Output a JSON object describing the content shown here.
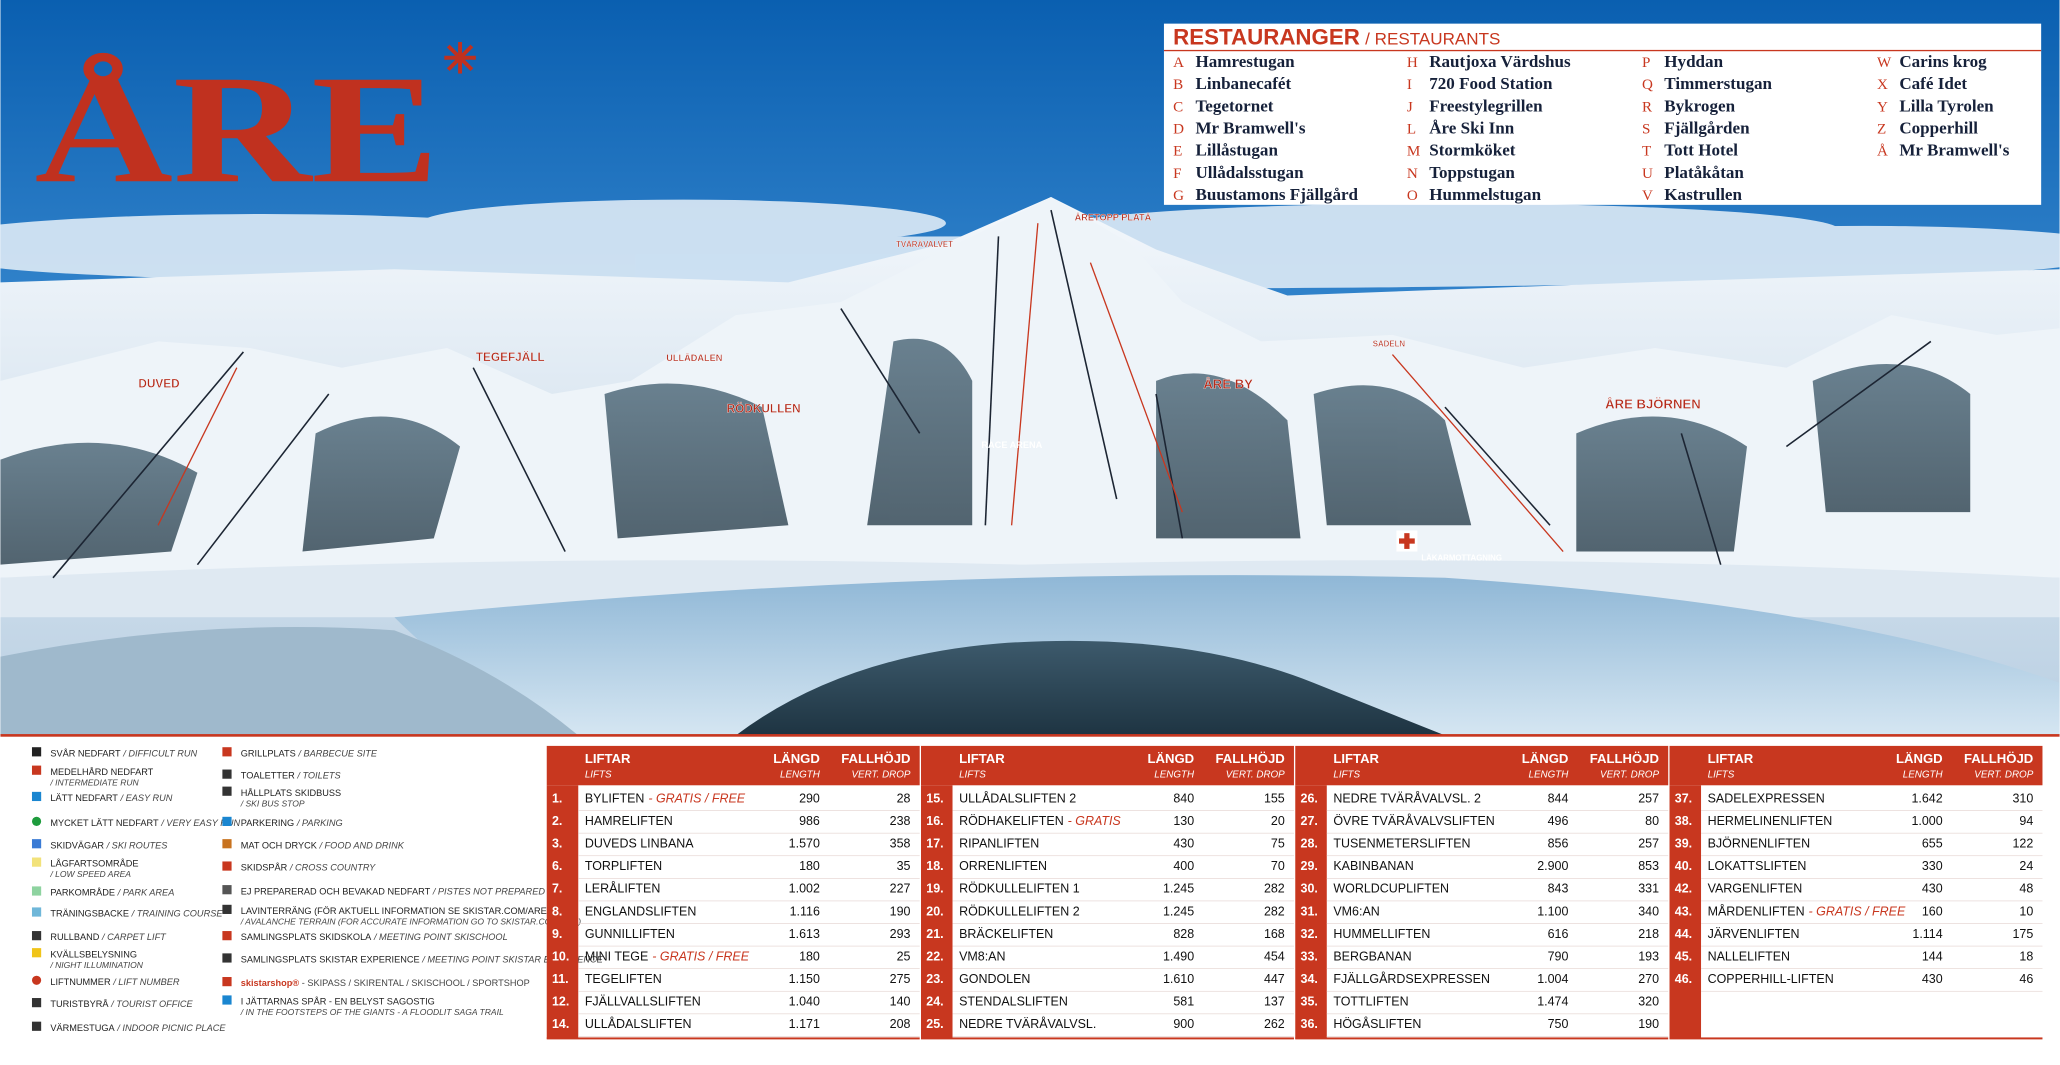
{
  "logo": "ÅRE",
  "restaurants": {
    "title": "RESTAURANGER",
    "subtitle": "/ RESTAURANTS",
    "items": [
      {
        "letter": "A",
        "name": "Hamrestugan"
      },
      {
        "letter": "B",
        "name": "Linbanecafét"
      },
      {
        "letter": "C",
        "name": "Tegetornet"
      },
      {
        "letter": "D",
        "name": "Mr Bramwell's"
      },
      {
        "letter": "E",
        "name": "Lillåstugan"
      },
      {
        "letter": "F",
        "name": "Ullådalsstugan"
      },
      {
        "letter": "G",
        "name": "Buustamons Fjällgård"
      },
      {
        "letter": "H",
        "name": "Rautjoxa Värdshus"
      },
      {
        "letter": "I",
        "name": "720 Food Station"
      },
      {
        "letter": "J",
        "name": "Freestylegrillen"
      },
      {
        "letter": "L",
        "name": "Åre Ski Inn"
      },
      {
        "letter": "M",
        "name": "Stormköket"
      },
      {
        "letter": "N",
        "name": "Toppstugan"
      },
      {
        "letter": "O",
        "name": "Hummelstugan"
      },
      {
        "letter": "P",
        "name": "Hyddan"
      },
      {
        "letter": "Q",
        "name": "Timmerstugan"
      },
      {
        "letter": "R",
        "name": "Bykrogen"
      },
      {
        "letter": "S",
        "name": "Fjällgården"
      },
      {
        "letter": "T",
        "name": "Tott Hotel"
      },
      {
        "letter": "U",
        "name": "Platåkåtan"
      },
      {
        "letter": "V",
        "name": "Kastrullen"
      },
      {
        "letter": "W",
        "name": "Carins krog"
      },
      {
        "letter": "X",
        "name": "Café Idet"
      },
      {
        "letter": "Y",
        "name": "Lilla Tyrolen"
      },
      {
        "letter": "Z",
        "name": "Copperhill"
      },
      {
        "letter": "Å",
        "name": "Mr Bramwell's"
      }
    ]
  },
  "map_labels": [
    "DUVED",
    "TEGEFJÄLL",
    "ULLÅDALEN",
    "RÖDKULLEN",
    "TVÄRÅVALVET",
    "ÅRETOPP PLATÅ",
    "RACE ARENA",
    "ÅRE BY",
    "SADELN",
    "ÅRE BJÖRNEN",
    "LÄKARMOTTAGNING"
  ],
  "legend": [
    {
      "sv": "SVÅR NEDFART",
      "en": "/ DIFFICULT RUN"
    },
    {
      "sv": "MEDELHÅRD NEDFART",
      "en": "/ INTERMEDIATE RUN"
    },
    {
      "sv": "LÄTT NEDFART",
      "en": "/ EASY RUN"
    },
    {
      "sv": "MYCKET LÄTT NEDFART",
      "en": "/ VERY EASY RUN"
    },
    {
      "sv": "SKIDVÄGAR",
      "en": "/ SKI ROUTES"
    },
    {
      "sv": "LÅGFARTSOMRÅDE",
      "en": "/ LOW SPEED AREA"
    },
    {
      "sv": "PARKOMRÅDE",
      "en": "/ PARK AREA"
    },
    {
      "sv": "TRÄNINGSBACKE",
      "en": "/ TRAINING COURSE"
    },
    {
      "sv": "RULLBAND",
      "en": "/ CARPET LIFT"
    },
    {
      "sv": "KVÄLLSBELYSNING",
      "en": "/ NIGHT ILLUMINATION"
    },
    {
      "sv": "LIFTNUMMER",
      "en": "/ LIFT NUMBER"
    },
    {
      "sv": "TURISTBYRÅ",
      "en": "/ TOURIST OFFICE"
    },
    {
      "sv": "VÄRMESTUGA",
      "en": "/ INDOOR PICNIC PLACE"
    },
    {
      "sv": "GRILLPLATS",
      "en": "/ BARBECUE SITE"
    },
    {
      "sv": "TOALETTER",
      "en": "/ TOILETS"
    },
    {
      "sv": "HÅLLPLATS SKIDBUSS",
      "en": "/ SKI BUS STOP"
    },
    {
      "sv": "PARKERING",
      "en": "/ PARKING"
    },
    {
      "sv": "MAT OCH DRYCK",
      "en": "/ FOOD AND DRINK"
    },
    {
      "sv": "SKIDSPÅR",
      "en": "/ CROSS COUNTRY"
    },
    {
      "sv": "EJ PREPARERAD OCH BEVAKAD NEDFART",
      "en": "/ PISTES NOT PREPARED"
    },
    {
      "sv": "LAVINTERRÄNG (FÖR AKTUELL INFORMATION SE SKISTAR.COM/ARE)",
      "en": "/ AVALANCHE TERRAIN (FOR ACCURATE INFORMATION GO TO SKISTAR.COM/ARE)"
    },
    {
      "sv": "SAMLINGSPLATS SKIDSKOLA",
      "en": "/ MEETING POINT SKISCHOOL"
    },
    {
      "sv": "SAMLINGSPLATS SKISTAR EXPERIENCE",
      "en": "/ MEETING POINT SKISTAR EXPERIENCE"
    },
    {
      "sv": "skistarshop®",
      "en": "- SKIPASS / SKIRENTAL / SKISCHOOL / SPORTSHOP"
    },
    {
      "sv": "I JÄTTARNAS SPÅR - EN BELYST SAGOSTIG",
      "en": "/ IN THE FOOTSTEPS OF THE GIANTS - A FLOODLIT SAGA TRAIL"
    }
  ],
  "lift_table": {
    "headers": {
      "lifts_sv": "LIFTAR",
      "lifts_en": "LIFTS",
      "length_sv": "LÄNGD",
      "length_en": "LENGTH",
      "drop_sv": "FALLHÖJD",
      "drop_en": "VERT. DROP"
    },
    "lifts": [
      {
        "no": "1.",
        "name": "BYLIFTEN",
        "note": "- GRATIS / FREE",
        "length": "290",
        "drop": "28"
      },
      {
        "no": "2.",
        "name": "HAMRELIFTEN",
        "length": "986",
        "drop": "238"
      },
      {
        "no": "3.",
        "name": "DUVEDS LINBANA",
        "length": "1.570",
        "drop": "358"
      },
      {
        "no": "6.",
        "name": "TORPLIFTEN",
        "length": "180",
        "drop": "35"
      },
      {
        "no": "7.",
        "name": "LERÅLIFTEN",
        "length": "1.002",
        "drop": "227"
      },
      {
        "no": "8.",
        "name": "ENGLANDSLIFTEN",
        "length": "1.116",
        "drop": "190"
      },
      {
        "no": "9.",
        "name": "GUNNILLIFTEN",
        "length": "1.613",
        "drop": "293"
      },
      {
        "no": "10.",
        "name": "MINI TEGE",
        "note": "- GRATIS / FREE",
        "length": "180",
        "drop": "25"
      },
      {
        "no": "11.",
        "name": "TEGELIFTEN",
        "length": "1.150",
        "drop": "275"
      },
      {
        "no": "12.",
        "name": "FJÄLLVALLSLIFTEN",
        "length": "1.040",
        "drop": "140"
      },
      {
        "no": "14.",
        "name": "ULLÅDALSLIFTEN",
        "length": "1.171",
        "drop": "208"
      },
      {
        "no": "15.",
        "name": "ULLÅDALSLIFTEN 2",
        "length": "840",
        "drop": "155"
      },
      {
        "no": "16.",
        "name": "RÖDHAKELIFTEN",
        "note": "- GRATIS",
        "length": "130",
        "drop": "20"
      },
      {
        "no": "17.",
        "name": "RIPANLIFTEN",
        "length": "430",
        "drop": "75"
      },
      {
        "no": "18.",
        "name": "ORRENLIFTEN",
        "length": "400",
        "drop": "70"
      },
      {
        "no": "19.",
        "name": "RÖDKULLELIFTEN 1",
        "length": "1.245",
        "drop": "282"
      },
      {
        "no": "20.",
        "name": "RÖDKULLELIFTEN 2",
        "length": "1.245",
        "drop": "282"
      },
      {
        "no": "21.",
        "name": "BRÄCKELIFTEN",
        "length": "828",
        "drop": "168"
      },
      {
        "no": "22.",
        "name": "VM8:AN",
        "length": "1.490",
        "drop": "454"
      },
      {
        "no": "23.",
        "name": "GONDOLEN",
        "length": "1.610",
        "drop": "447"
      },
      {
        "no": "24.",
        "name": "STENDALSLIFTEN",
        "length": "581",
        "drop": "137"
      },
      {
        "no": "25.",
        "name": "NEDRE TVÄRÅVALVSL.",
        "length": "900",
        "drop": "262"
      },
      {
        "no": "26.",
        "name": "NEDRE TVÄRÅVALVSL. 2",
        "length": "844",
        "drop": "257"
      },
      {
        "no": "27.",
        "name": "ÖVRE TVÄRÅVALVSLIFTEN",
        "length": "496",
        "drop": "80"
      },
      {
        "no": "28.",
        "name": "TUSENMETERSLIFTEN",
        "length": "856",
        "drop": "257"
      },
      {
        "no": "29.",
        "name": "KABINBANAN",
        "length": "2.900",
        "drop": "853"
      },
      {
        "no": "30.",
        "name": "WORLDCUPLIFTEN",
        "length": "843",
        "drop": "331"
      },
      {
        "no": "31.",
        "name": "VM6:AN",
        "length": "1.100",
        "drop": "340"
      },
      {
        "no": "32.",
        "name": "HUMMELLIFTEN",
        "length": "616",
        "drop": "218"
      },
      {
        "no": "33.",
        "name": "BERGBANAN",
        "length": "790",
        "drop": "193"
      },
      {
        "no": "34.",
        "name": "FJÄLLGÅRDSEXPRESSEN",
        "length": "1.004",
        "drop": "270"
      },
      {
        "no": "35.",
        "name": "TOTTLIFTEN",
        "length": "1.474",
        "drop": "320"
      },
      {
        "no": "36.",
        "name": "HÖGÅSLIFTEN",
        "length": "750",
        "drop": "190"
      },
      {
        "no": "37.",
        "name": "SADELEXPRESSEN",
        "length": "1.642",
        "drop": "310"
      },
      {
        "no": "38.",
        "name": "HERMELINENLIFTEN",
        "length": "1.000",
        "drop": "94"
      },
      {
        "no": "39.",
        "name": "BJÖRNENLIFTEN",
        "length": "655",
        "drop": "122"
      },
      {
        "no": "40.",
        "name": "LOKATTSLIFTEN",
        "length": "330",
        "drop": "24"
      },
      {
        "no": "42.",
        "name": "VARGENLIFTEN",
        "length": "430",
        "drop": "48"
      },
      {
        "no": "43.",
        "name": "MÅRDENLIFTEN",
        "note": "- GRATIS / FREE",
        "length": "160",
        "drop": "10"
      },
      {
        "no": "44.",
        "name": "JÄRVENLIFTEN",
        "length": "1.114",
        "drop": "175"
      },
      {
        "no": "45.",
        "name": "NALLELIFTEN",
        "length": "144",
        "drop": "18"
      },
      {
        "no": "46.",
        "name": "COPPERHILL-LIFTEN",
        "length": "430",
        "drop": "46"
      }
    ]
  }
}
